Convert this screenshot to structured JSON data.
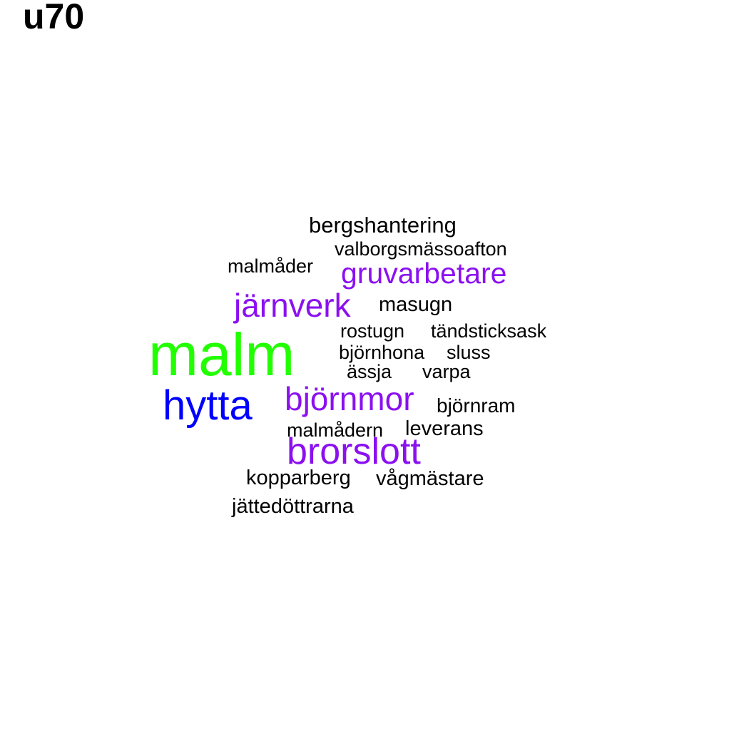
{
  "title": "u70",
  "colors": {
    "black": "#000000",
    "purple": "#8b10f0",
    "blue": "#0000ff",
    "green": "#22ff00"
  },
  "words": [
    {
      "text": "malm",
      "color": "#22ff00"
    },
    {
      "text": "hytta",
      "color": "#0000ff"
    },
    {
      "text": "brorslott",
      "color": "#8b10f0"
    },
    {
      "text": "björnmor",
      "color": "#8b10f0"
    },
    {
      "text": "järnverk",
      "color": "#8b10f0"
    },
    {
      "text": "gruvarbetare",
      "color": "#8b10f0"
    },
    {
      "text": "bergshantering",
      "color": "#000000"
    },
    {
      "text": "valborgsmässoafton",
      "color": "#000000"
    },
    {
      "text": "malmåder",
      "color": "#000000"
    },
    {
      "text": "masugn",
      "color": "#000000"
    },
    {
      "text": "rostugn",
      "color": "#000000"
    },
    {
      "text": "tändsticksask",
      "color": "#000000"
    },
    {
      "text": "björnhona",
      "color": "#000000"
    },
    {
      "text": "sluss",
      "color": "#000000"
    },
    {
      "text": "ässja",
      "color": "#000000"
    },
    {
      "text": "varpa",
      "color": "#000000"
    },
    {
      "text": "björnram",
      "color": "#000000"
    },
    {
      "text": "malmådern",
      "color": "#000000"
    },
    {
      "text": "leverans",
      "color": "#000000"
    },
    {
      "text": "kopparberg",
      "color": "#000000"
    },
    {
      "text": "vågmästare",
      "color": "#000000"
    },
    {
      "text": "jättedöttrarna",
      "color": "#000000"
    }
  ]
}
